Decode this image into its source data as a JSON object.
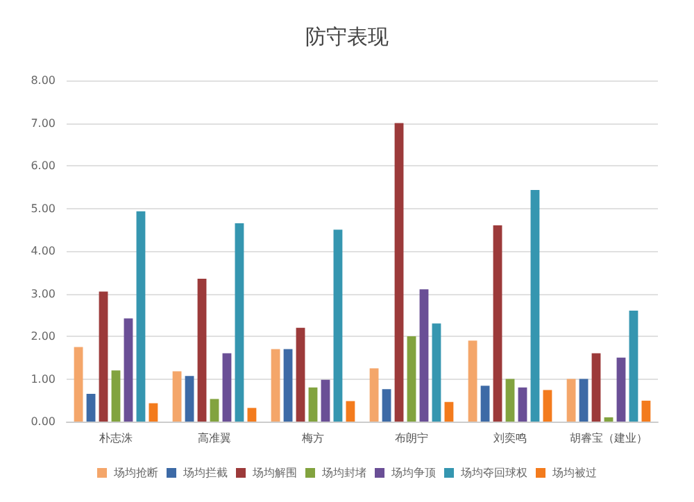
{
  "chart_data": {
    "type": "bar",
    "title": "防守表现",
    "categories": [
      "朴志洙",
      "高准翼",
      "梅方",
      "布朗宁",
      "刘奕鸣",
      "胡睿宝（建业）"
    ],
    "series": [
      {
        "name": "场均抢断",
        "color": "#f4a66a",
        "values": [
          1.75,
          1.18,
          1.7,
          1.25,
          1.9,
          1.0
        ]
      },
      {
        "name": "场均拦截",
        "color": "#3d6aa6",
        "values": [
          0.65,
          1.07,
          1.7,
          0.76,
          0.84,
          1.0
        ]
      },
      {
        "name": "场均解围",
        "color": "#9c3a3a",
        "values": [
          3.05,
          3.35,
          2.2,
          7.0,
          4.6,
          1.6
        ]
      },
      {
        "name": "场均封堵",
        "color": "#82a33f",
        "values": [
          1.2,
          0.53,
          0.8,
          2.0,
          1.0,
          0.1
        ]
      },
      {
        "name": "场均争顶",
        "color": "#6a4f96",
        "values": [
          2.42,
          1.6,
          0.98,
          3.1,
          0.8,
          1.5
        ]
      },
      {
        "name": "场均夺回球权",
        "color": "#3596b0",
        "values": [
          4.93,
          4.65,
          4.5,
          2.3,
          5.43,
          2.6
        ]
      },
      {
        "name": "场均被过",
        "color": "#f37b1d",
        "values": [
          0.43,
          0.32,
          0.48,
          0.46,
          0.74,
          0.49
        ]
      }
    ],
    "ylim": [
      0,
      8
    ],
    "yticks": [
      {
        "value": 0,
        "label": "0.00"
      },
      {
        "value": 1,
        "label": "1.00"
      },
      {
        "value": 2,
        "label": "2.00"
      },
      {
        "value": 3,
        "label": "3.00"
      },
      {
        "value": 4,
        "label": "4.00"
      },
      {
        "value": 5,
        "label": "5.00"
      },
      {
        "value": 6,
        "label": "6.00"
      },
      {
        "value": 7,
        "label": "7.00"
      },
      {
        "value": 8,
        "label": "8.00"
      }
    ],
    "grid": "y",
    "legend": "bottom"
  }
}
